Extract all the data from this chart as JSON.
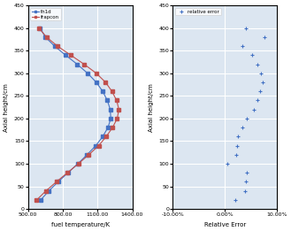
{
  "axial_heights": [
    20,
    40,
    60,
    80,
    100,
    120,
    140,
    160,
    180,
    200,
    220,
    240,
    260,
    280,
    300,
    320,
    340,
    360,
    380,
    400
  ],
  "th1d_temps": [
    610,
    680,
    760,
    845,
    930,
    1010,
    1085,
    1145,
    1190,
    1215,
    1210,
    1185,
    1145,
    1090,
    1015,
    925,
    825,
    730,
    650,
    605
  ],
  "frapcon_temps": [
    575,
    655,
    745,
    840,
    935,
    1025,
    1110,
    1175,
    1230,
    1270,
    1285,
    1265,
    1225,
    1170,
    1090,
    985,
    870,
    755,
    660,
    595
  ],
  "relative_errors": [
    0.02,
    0.038,
    0.04,
    0.043,
    0.005,
    0.021,
    0.023,
    0.025,
    0.033,
    0.043,
    0.055,
    0.063,
    0.068,
    0.073,
    0.07,
    0.063,
    0.053,
    0.033,
    0.076,
    0.04
  ],
  "th1d_color": "#4472c4",
  "frapcon_color": "#c0504d",
  "error_color": "#4472c4",
  "left_xlim": [
    500,
    1400
  ],
  "left_xticks": [
    500,
    800,
    1100,
    1400
  ],
  "right_xlim": [
    -0.1,
    0.1
  ],
  "right_xticks": [
    -0.1,
    0.0,
    0.1
  ],
  "ylim": [
    0,
    450
  ],
  "yticks": [
    0,
    50,
    100,
    150,
    200,
    250,
    300,
    350,
    400,
    450
  ],
  "left_xlabel": "fuel temperature/K",
  "right_xlabel": "Relative Error",
  "ylabel": "Axial height/cm",
  "left_legend_labels": [
    "th1d",
    "frapcon"
  ],
  "right_legend_label": "relative error",
  "background_color": "#dce6f1",
  "grid_color": "#ffffff",
  "fig_width": 3.29,
  "fig_height": 2.61,
  "dpi": 100
}
